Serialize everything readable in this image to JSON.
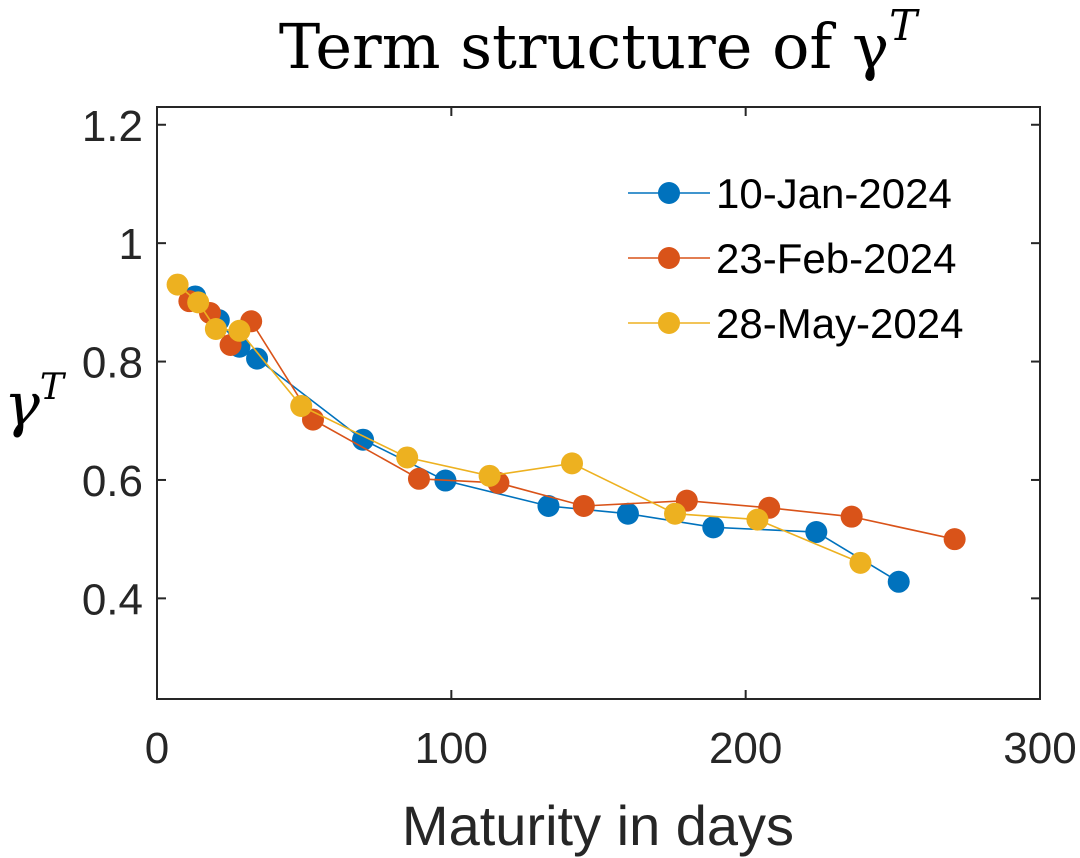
{
  "chart_data": {
    "type": "line",
    "title": "Term structure of γ",
    "title_superscript": "T",
    "xlabel": "Maturity in days",
    "ylabel": "γ",
    "ylabel_superscript": "T",
    "xlim": [
      0,
      300
    ],
    "ylim": [
      0.23,
      1.23
    ],
    "xticks": [
      0,
      100,
      200,
      300
    ],
    "xtick_labels": [
      "0",
      "100",
      "200",
      "300"
    ],
    "yticks": [
      0.4,
      0.6,
      0.8,
      1.0,
      1.2
    ],
    "ytick_labels": [
      "0.4",
      "0.6",
      "0.8",
      "1",
      "1.2"
    ],
    "grid": false,
    "legend_position": "top-right",
    "series": [
      {
        "name": "10-Jan-2024",
        "color": "#0072BD",
        "x": [
          13,
          21,
          28,
          34,
          70,
          98,
          133,
          160,
          189,
          224,
          252
        ],
        "y": [
          0.91,
          0.87,
          0.825,
          0.805,
          0.668,
          0.599,
          0.556,
          0.543,
          0.52,
          0.512,
          0.428
        ]
      },
      {
        "name": "23-Feb-2024",
        "color": "#D95319",
        "x": [
          11,
          18,
          25,
          32,
          53,
          89,
          116,
          145,
          180,
          208,
          236,
          271
        ],
        "y": [
          0.902,
          0.882,
          0.828,
          0.868,
          0.702,
          0.602,
          0.595,
          0.556,
          0.565,
          0.553,
          0.538,
          0.5
        ]
      },
      {
        "name": "28-May-2024",
        "color": "#EDB120",
        "x": [
          7,
          14,
          20,
          28,
          49,
          85,
          113,
          141,
          176,
          204,
          239
        ],
        "y": [
          0.93,
          0.9,
          0.855,
          0.852,
          0.725,
          0.638,
          0.607,
          0.628,
          0.543,
          0.533,
          0.46
        ]
      }
    ]
  }
}
